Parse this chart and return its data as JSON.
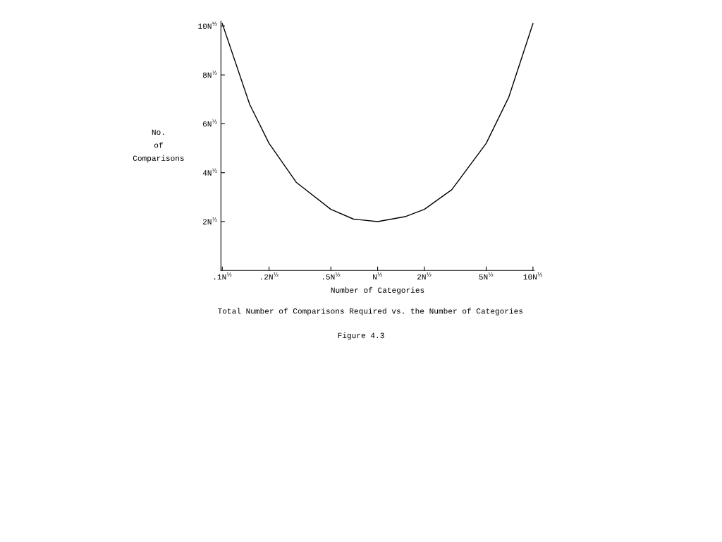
{
  "chart_data": {
    "type": "line",
    "title": "Total Number of Comparisons Required vs. the Number of Categories",
    "xlabel": "Number of Categories",
    "ylabel": "No.\nof\nComparisons",
    "annotations": [
      "Figure 4.3"
    ],
    "x": [
      0.1,
      0.15,
      0.2,
      0.3,
      0.5,
      0.7,
      1,
      1.5,
      2,
      3,
      5,
      7,
      10
    ],
    "series": [
      {
        "color": "#000000",
        "values": [
          10.1,
          6.8,
          5.2,
          3.6,
          2.5,
          2.1,
          2.0,
          2.2,
          2.5,
          3.3,
          5.2,
          7.1,
          10.1
        ]
      }
    ],
    "log": "x",
    "xlim": [
      0.098,
      10.2
    ],
    "ylim": [
      0,
      10.2
    ],
    "xticks": [
      {
        "value": 0.1,
        "label": ".1N$^{½}$"
      },
      {
        "value": 0.2,
        "label": ".2N$^{½}$"
      },
      {
        "value": 0.5,
        "label": ".5N$^{½}$"
      },
      {
        "value": 1,
        "label": "N$^{½}$"
      },
      {
        "value": 2,
        "label": "2N$^{½}$"
      },
      {
        "value": 5,
        "label": "5N$^{½}$"
      },
      {
        "value": 10,
        "label": "10N$^{½}$"
      }
    ],
    "yticks": [
      {
        "value": 2,
        "label": "2N$^{½}$"
      },
      {
        "value": 4,
        "label": "4N$^{½}$"
      },
      {
        "value": 6,
        "label": "6N$^{½}$"
      },
      {
        "value": 8,
        "label": "8N$^{½}$"
      },
      {
        "value": 10,
        "label": "10N$^{½}$"
      }
    ],
    "grid": false,
    "legend": false,
    "marker": "none",
    "line_style": "solid"
  }
}
